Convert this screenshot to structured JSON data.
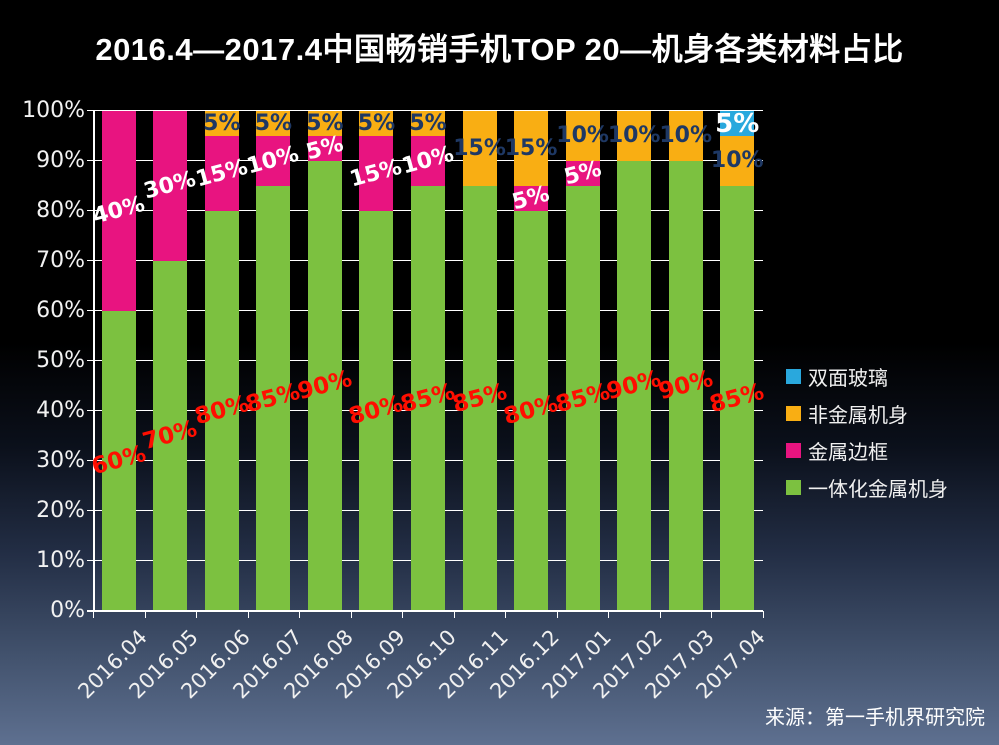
{
  "title": "2016.4—2017.4中国畅销手机TOP 20—机身各类材料占比",
  "source": "来源：第一手机界研究院",
  "colors": {
    "background_top": "#000000",
    "background_bottom": "#5e7090",
    "gridline": "#ffffff",
    "axis_text": "#f2f2f2",
    "title_text": "#ffffff"
  },
  "chart_data": {
    "type": "bar",
    "stacked": true,
    "title": "2016.4—2017.4中国畅销手机TOP 20—机身各类材料占比",
    "categories": [
      "2016.04",
      "2016.05",
      "2016.06",
      "2016.07",
      "2016.08",
      "2016.09",
      "2016.10",
      "2016.11",
      "2016.12",
      "2017.01",
      "2017.02",
      "2017.03",
      "2017.04"
    ],
    "series": [
      {
        "name": "一体化金属机身",
        "color": "#7cc140",
        "label_color": "#ff0e00",
        "label_rotation": -15,
        "label_size": 23,
        "values": [
          60,
          70,
          80,
          85,
          90,
          80,
          85,
          85,
          80,
          85,
          90,
          90,
          85
        ]
      },
      {
        "name": "金属边框",
        "color": "#e81480",
        "label_color": "#ffffff",
        "label_rotation": -15,
        "label_size": 22,
        "values": [
          40,
          30,
          15,
          10,
          5,
          15,
          10,
          0,
          5,
          5,
          0,
          0,
          0
        ]
      },
      {
        "name": "非金属机身",
        "color": "#f9ae13",
        "label_color": "#1e3864",
        "label_rotation": 0,
        "label_size": 22,
        "values": [
          0,
          0,
          5,
          5,
          5,
          5,
          5,
          15,
          15,
          10,
          10,
          10,
          10
        ]
      },
      {
        "name": "双面玻璃",
        "color": "#29a8dd",
        "label_color": "#ffffff",
        "label_rotation": 0,
        "label_size": 26,
        "values": [
          0,
          0,
          0,
          0,
          0,
          0,
          0,
          0,
          0,
          0,
          0,
          0,
          5
        ]
      }
    ],
    "y_ticks": [
      "0%",
      "10%",
      "20%",
      "30%",
      "40%",
      "50%",
      "60%",
      "70%",
      "80%",
      "90%",
      "100%"
    ],
    "ylim": [
      0,
      100
    ],
    "grid": true,
    "legend_position": "right",
    "value_suffix": "%",
    "xlabel": "",
    "ylabel": ""
  }
}
